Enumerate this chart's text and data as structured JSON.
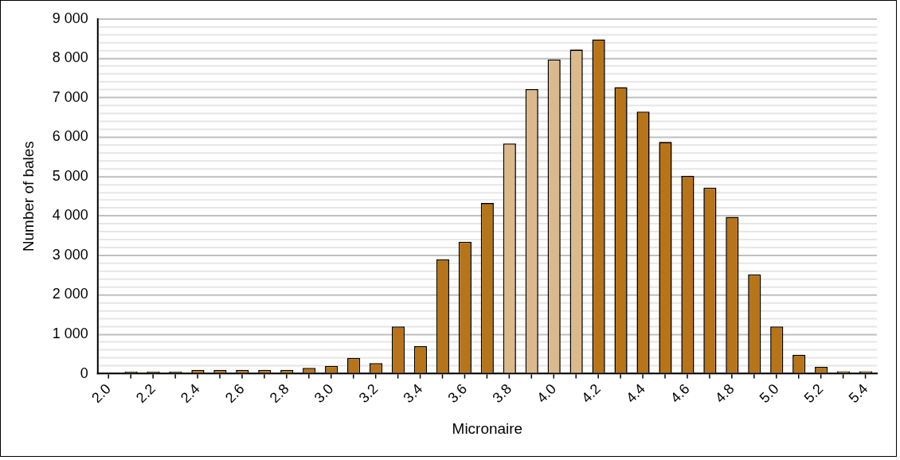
{
  "chart_data": {
    "type": "bar",
    "xlabel": "Micronaire",
    "ylabel": "Number of bales",
    "categories": [
      "2.0",
      null,
      "2.2",
      null,
      "2.4",
      null,
      "2.6",
      null,
      "2.8",
      null,
      "3.0",
      null,
      "3.2",
      null,
      "3.4",
      null,
      "3.6",
      null,
      "3.8",
      null,
      "4.0",
      null,
      "4.2",
      null,
      "4.4",
      null,
      "4.6",
      null,
      "4.8",
      null,
      "5.0",
      null,
      "5.2",
      null,
      "5.4"
    ],
    "values": [
      0,
      50,
      50,
      50,
      100,
      100,
      100,
      100,
      100,
      150,
      200,
      400,
      270,
      1200,
      700,
      2900,
      3350,
      4330,
      5840,
      7220,
      7970,
      8220,
      8480,
      7270,
      6650,
      5880,
      5020,
      4720,
      3980,
      2520,
      1200,
      480,
      175,
      60,
      60
    ],
    "colors": [
      "#b87418",
      "#b87418",
      "#b87418",
      "#b87418",
      "#b87418",
      "#b87418",
      "#b87418",
      "#b87418",
      "#b87418",
      "#b87418",
      "#b87418",
      "#b87418",
      "#b87418",
      "#b87418",
      "#b87418",
      "#b87418",
      "#b87418",
      "#b87418",
      "#dcb98b",
      "#dcb98b",
      "#dcb98b",
      "#dcb98b",
      "#b87418",
      "#b87418",
      "#b87418",
      "#b87418",
      "#b87418",
      "#b87418",
      "#b87418",
      "#b87418",
      "#b87418",
      "#b87418",
      "#b87418",
      "#b87418",
      "#b87418"
    ],
    "ylim": [
      0,
      9000
    ],
    "yticks": [
      {
        "value": 0,
        "label": "0"
      },
      {
        "value": 200,
        "label": null
      },
      {
        "value": 400,
        "label": null
      },
      {
        "value": 600,
        "label": null
      },
      {
        "value": 800,
        "label": null
      },
      {
        "value": 1000,
        "label": "1 000"
      },
      {
        "value": 1200,
        "label": null
      },
      {
        "value": 1400,
        "label": null
      },
      {
        "value": 1600,
        "label": null
      },
      {
        "value": 1800,
        "label": null
      },
      {
        "value": 2000,
        "label": "2 000"
      },
      {
        "value": 2200,
        "label": null
      },
      {
        "value": 2400,
        "label": null
      },
      {
        "value": 2600,
        "label": null
      },
      {
        "value": 2800,
        "label": null
      },
      {
        "value": 3000,
        "label": "3 000"
      },
      {
        "value": 3200,
        "label": null
      },
      {
        "value": 3400,
        "label": null
      },
      {
        "value": 3600,
        "label": null
      },
      {
        "value": 3800,
        "label": null
      },
      {
        "value": 4000,
        "label": "4 000"
      },
      {
        "value": 4200,
        "label": null
      },
      {
        "value": 4400,
        "label": null
      },
      {
        "value": 4600,
        "label": null
      },
      {
        "value": 4800,
        "label": null
      },
      {
        "value": 5000,
        "label": "5 000"
      },
      {
        "value": 5200,
        "label": null
      },
      {
        "value": 5400,
        "label": null
      },
      {
        "value": 5600,
        "label": null
      },
      {
        "value": 5800,
        "label": null
      },
      {
        "value": 6000,
        "label": "6 000"
      },
      {
        "value": 6200,
        "label": null
      },
      {
        "value": 6400,
        "label": null
      },
      {
        "value": 6600,
        "label": null
      },
      {
        "value": 6800,
        "label": null
      },
      {
        "value": 7000,
        "label": "7 000"
      },
      {
        "value": 7200,
        "label": null
      },
      {
        "value": 7400,
        "label": null
      },
      {
        "value": 7600,
        "label": null
      },
      {
        "value": 7800,
        "label": null
      },
      {
        "value": 8000,
        "label": "8 000"
      },
      {
        "value": 8200,
        "label": null
      },
      {
        "value": 8400,
        "label": null
      },
      {
        "value": 8600,
        "label": null
      },
      {
        "value": 8800,
        "label": null
      },
      {
        "value": 9000,
        "label": "9 000"
      }
    ],
    "grid": "y",
    "legend": false
  }
}
